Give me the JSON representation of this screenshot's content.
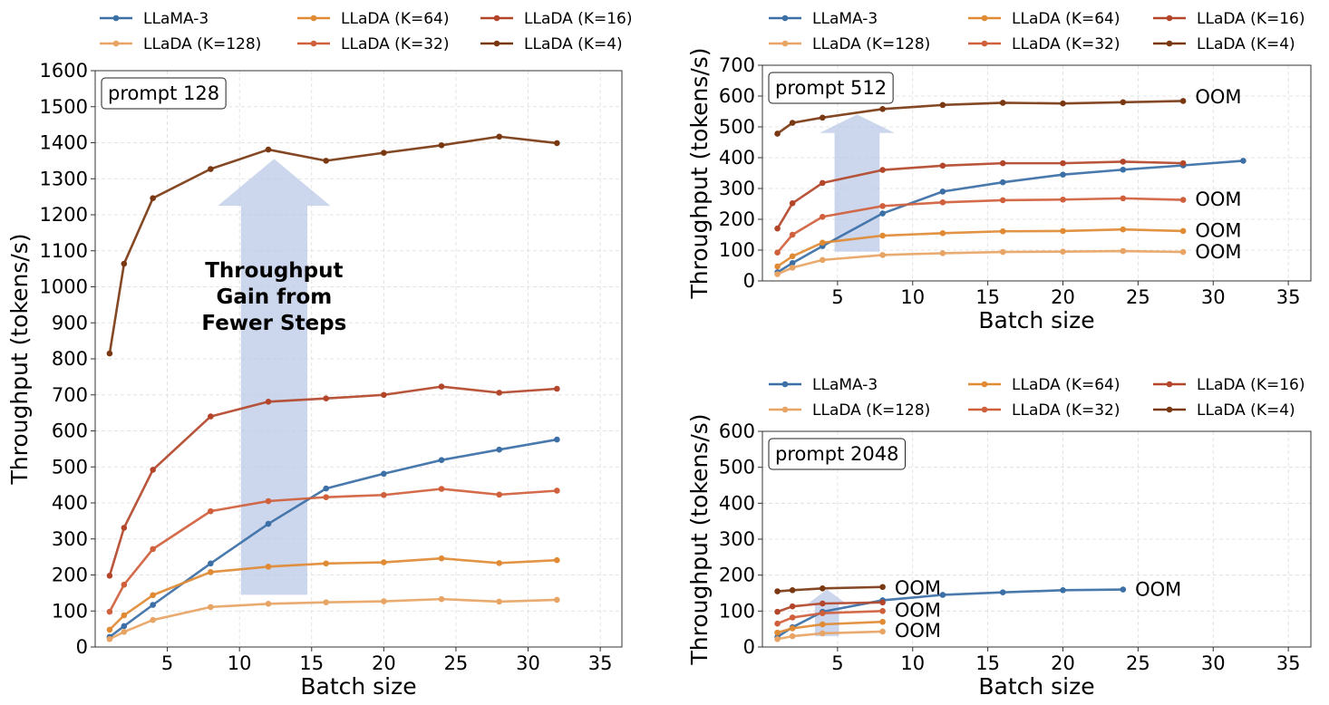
{
  "legend_entries": [
    {
      "label": "LLaMA-3",
      "color": "#3b6fa6"
    },
    {
      "label": "LLaDA (K=128)",
      "color": "#e8a464"
    },
    {
      "label": "LLaDA (K=64)",
      "color": "#e08a34"
    },
    {
      "label": "LLaDA (K=32)",
      "color": "#d0603c"
    },
    {
      "label": "LLaDA (K=16)",
      "color": "#b3462a"
    },
    {
      "label": "LLaDA (K=4)",
      "color": "#7a3812"
    }
  ],
  "arrow_color": "#b9c6e6",
  "chart_data": [
    {
      "type": "line",
      "annotation": "prompt 128",
      "arrow_label": [
        "Throughput",
        "Gain from",
        "Fewer Steps"
      ],
      "xlabel": "Batch size",
      "ylabel": "Throughput (tokens/s)",
      "xlim": [
        0,
        36.5
      ],
      "ylim": [
        0,
        1600
      ],
      "xticks": [
        5,
        10,
        15,
        20,
        25,
        30,
        35
      ],
      "yticks": [
        0,
        100,
        200,
        300,
        400,
        500,
        600,
        700,
        800,
        900,
        1000,
        1100,
        1200,
        1300,
        1400,
        1500,
        1600
      ],
      "grid": true,
      "legend": "above",
      "x": [
        1,
        2,
        4,
        8,
        12,
        16,
        20,
        24,
        28,
        32
      ],
      "series": [
        {
          "name": "LLaMA-3",
          "color": "#3b6fa6",
          "values": [
            28,
            58,
            117,
            232,
            342,
            440,
            481,
            519,
            548,
            576
          ]
        },
        {
          "name": "LLaDA (K=128)",
          "color": "#e8a464",
          "values": [
            22,
            42,
            75,
            111,
            120,
            124,
            127,
            133,
            126,
            131
          ]
        },
        {
          "name": "LLaDA (K=64)",
          "color": "#e08a34",
          "values": [
            48,
            88,
            144,
            208,
            223,
            232,
            235,
            246,
            233,
            241
          ]
        },
        {
          "name": "LLaDA (K=32)",
          "color": "#d0603c",
          "values": [
            98,
            173,
            272,
            377,
            405,
            416,
            422,
            439,
            423,
            434
          ]
        },
        {
          "name": "LLaDA (K=16)",
          "color": "#b3462a",
          "values": [
            198,
            331,
            492,
            640,
            681,
            690,
            700,
            723,
            706,
            717
          ]
        },
        {
          "name": "LLaDA (K=4)",
          "color": "#7a3812",
          "values": [
            815,
            1064,
            1246,
            1327,
            1381,
            1350,
            1372,
            1393,
            1417,
            1399
          ]
        }
      ],
      "oom_labels": []
    },
    {
      "type": "line",
      "annotation": "prompt 512",
      "xlabel": "Batch size",
      "ylabel": "Throughput (tokens/s)",
      "xlim": [
        0,
        36.5
      ],
      "ylim": [
        0,
        700
      ],
      "xticks": [
        5,
        10,
        15,
        20,
        25,
        30,
        35
      ],
      "yticks": [
        0,
        100,
        200,
        300,
        400,
        500,
        600,
        700
      ],
      "grid": true,
      "legend": "above",
      "series": [
        {
          "name": "LLaMA-3",
          "color": "#3b6fa6",
          "x": [
            1,
            2,
            4,
            8,
            12,
            16,
            20,
            24,
            28,
            32
          ],
          "values": [
            28,
            58,
            113,
            219,
            290,
            320,
            345,
            361,
            375,
            390
          ]
        },
        {
          "name": "LLaDA (K=128)",
          "color": "#e8a464",
          "x": [
            1,
            2,
            4,
            8,
            12,
            16,
            20,
            24,
            28
          ],
          "values": [
            22,
            43,
            68,
            84,
            90,
            94,
            95,
            97,
            94
          ]
        },
        {
          "name": "LLaDA (K=64)",
          "color": "#e08a34",
          "x": [
            1,
            2,
            4,
            8,
            12,
            16,
            20,
            24,
            28
          ],
          "values": [
            47,
            80,
            124,
            147,
            155,
            161,
            162,
            167,
            162
          ]
        },
        {
          "name": "LLaDA (K=32)",
          "color": "#d0603c",
          "x": [
            1,
            2,
            4,
            8,
            12,
            16,
            20,
            24,
            28
          ],
          "values": [
            92,
            150,
            208,
            243,
            255,
            262,
            264,
            268,
            263
          ]
        },
        {
          "name": "LLaDA (K=16)",
          "color": "#b3462a",
          "x": [
            1,
            2,
            4,
            8,
            12,
            16,
            20,
            24,
            28
          ],
          "values": [
            170,
            252,
            318,
            360,
            374,
            382,
            382,
            387,
            382
          ]
        },
        {
          "name": "LLaDA (K=4)",
          "color": "#7a3812",
          "x": [
            1,
            2,
            4,
            8,
            12,
            16,
            20,
            24,
            28
          ],
          "values": [
            478,
            513,
            530,
            558,
            571,
            578,
            576,
            580,
            584
          ]
        }
      ],
      "oom_labels": [
        {
          "text": "OOM",
          "x": 28.8,
          "y": 600
        },
        {
          "text": "OOM",
          "x": 28.8,
          "y": 268
        },
        {
          "text": "OOM",
          "x": 28.8,
          "y": 166
        },
        {
          "text": "OOM",
          "x": 28.8,
          "y": 97
        }
      ]
    },
    {
      "type": "line",
      "annotation": "prompt 2048",
      "xlabel": "Batch size",
      "ylabel": "Throughput (tokens/s)",
      "xlim": [
        0,
        36.5
      ],
      "ylim": [
        0,
        600
      ],
      "xticks": [
        5,
        10,
        15,
        20,
        25,
        30,
        35
      ],
      "yticks": [
        0,
        100,
        200,
        300,
        400,
        500,
        600
      ],
      "grid": true,
      "legend": "above",
      "series": [
        {
          "name": "LLaMA-3",
          "color": "#3b6fa6",
          "x": [
            1,
            2,
            4,
            8,
            12,
            16,
            20,
            24
          ],
          "values": [
            28,
            55,
            98,
            130,
            145,
            152,
            158,
            160
          ]
        },
        {
          "name": "LLaDA (K=128)",
          "color": "#e8a464",
          "x": [
            1,
            2,
            4,
            8
          ],
          "values": [
            22,
            30,
            38,
            43
          ]
        },
        {
          "name": "LLaDA (K=64)",
          "color": "#e08a34",
          "x": [
            1,
            2,
            4,
            8
          ],
          "values": [
            40,
            52,
            63,
            70
          ]
        },
        {
          "name": "LLaDA (K=32)",
          "color": "#d0603c",
          "x": [
            1,
            2,
            4,
            8
          ],
          "values": [
            65,
            82,
            94,
            100
          ]
        },
        {
          "name": "LLaDA (K=16)",
          "color": "#b3462a",
          "x": [
            1,
            2,
            4,
            8
          ],
          "values": [
            98,
            113,
            121,
            124
          ]
        },
        {
          "name": "LLaDA (K=4)",
          "color": "#7a3812",
          "x": [
            1,
            2,
            4,
            8
          ],
          "values": [
            155,
            158,
            163,
            167
          ]
        }
      ],
      "oom_labels": [
        {
          "text": "OOM",
          "x": 8.8,
          "y": 167
        },
        {
          "text": "OOM",
          "x": 8.8,
          "y": 104
        },
        {
          "text": "OOM",
          "x": 8.8,
          "y": 48
        },
        {
          "text": "OOM",
          "x": 24.8,
          "y": 163
        }
      ]
    }
  ]
}
